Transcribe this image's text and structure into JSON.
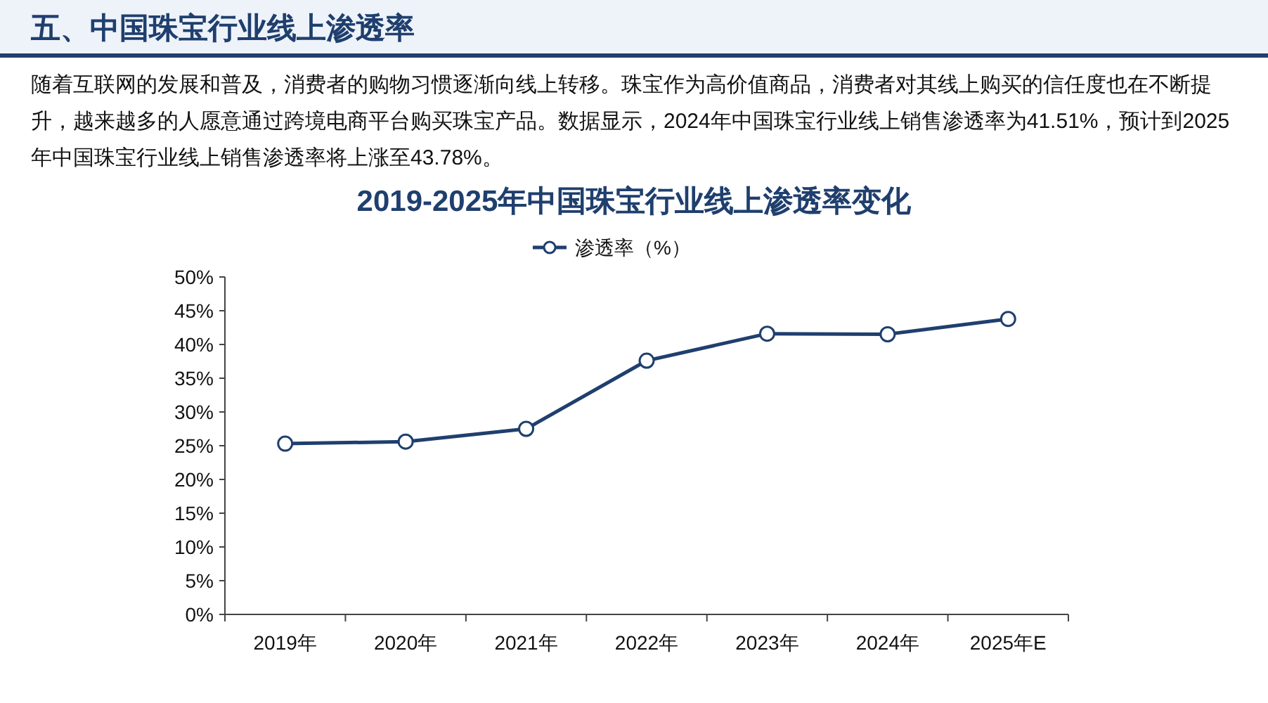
{
  "chart_data": {
    "type": "line",
    "title": "五、中国珠宝行业线上渗透率",
    "subtitle": "2019-2025年中国珠宝行业线上渗透率变化",
    "annotations": [
      "随着互联网的发展和普及，消费者的购物习惯逐渐向线上转移。珠宝作为高价值商品，消费者对其线上购买的信任度也在不断提升，越来越多的人愿意通过跨境电商平台购买珠宝产品。数据显示，2024年中国珠宝行业线上销售渗透率为41.51%，预计到2025年中国珠宝行业线上销售渗透率将上涨至43.78%。"
    ],
    "categories": [
      "2019年",
      "2020年",
      "2021年",
      "2022年",
      "2023年",
      "2024年",
      "2025年E"
    ],
    "series": [
      {
        "name": "渗透率（%）",
        "color": "#1f3f6e",
        "values": [
          25.3,
          25.6,
          27.5,
          37.6,
          41.6,
          41.51,
          43.78
        ]
      }
    ],
    "ylim": [
      0,
      50
    ],
    "yticks": [
      {
        "value": 0,
        "label": "0%"
      },
      {
        "value": 5,
        "label": "5%"
      },
      {
        "value": 10,
        "label": "10%"
      },
      {
        "value": 15,
        "label": "15%"
      },
      {
        "value": 20,
        "label": "20%"
      },
      {
        "value": 25,
        "label": "25%"
      },
      {
        "value": 30,
        "label": "30%"
      },
      {
        "value": 35,
        "label": "35%"
      },
      {
        "value": 40,
        "label": "40%"
      },
      {
        "value": 45,
        "label": "45%"
      },
      {
        "value": 50,
        "label": "50%"
      }
    ],
    "legend": "top",
    "marker": "circle",
    "line_style": "solid"
  }
}
